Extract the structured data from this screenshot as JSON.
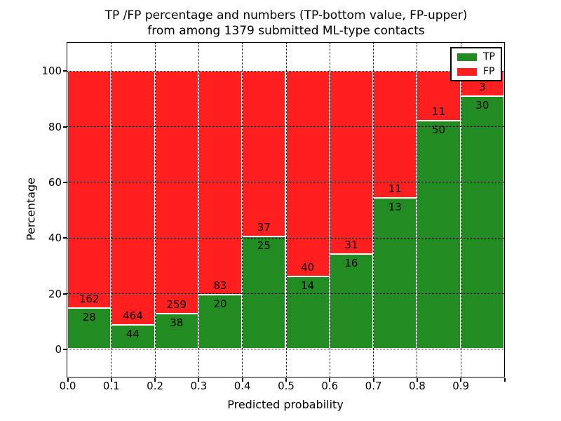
{
  "chart_data": {
    "type": "bar",
    "stacked": true,
    "normalized_to_percent": true,
    "title_line1": "TP /FP percentage and numbers (TP-bottom value, FP-upper)",
    "title_line2": "from among 1379 submitted ML-type contacts",
    "xlabel": "Predicted probability",
    "ylabel": "Percentage",
    "xlim": [
      0.0,
      1.0
    ],
    "ylim": [
      -10,
      110
    ],
    "x_tick_labels": [
      "0.0",
      "0.1",
      "0.2",
      "0.3",
      "0.4",
      "0.5",
      "0.6",
      "0.7",
      "0.8",
      "0.9"
    ],
    "y_tick_values": [
      0,
      20,
      40,
      60,
      80,
      100
    ],
    "y_tick_labels": [
      "0",
      "20",
      "40",
      "60",
      "80",
      "100"
    ],
    "bin_edges": [
      0.0,
      0.1,
      0.2,
      0.3,
      0.4,
      0.5,
      0.6,
      0.7,
      0.8,
      0.9,
      1.0
    ],
    "series": [
      {
        "name": "TP",
        "color": "#228b22",
        "counts": [
          28,
          44,
          38,
          20,
          25,
          14,
          16,
          13,
          50,
          30
        ]
      },
      {
        "name": "FP",
        "color": "#ff1f1f",
        "counts": [
          162,
          464,
          259,
          83,
          37,
          40,
          31,
          11,
          11,
          3
        ]
      }
    ],
    "tp_percentages": [
      14.7,
      8.7,
      12.8,
      19.4,
      40.3,
      25.9,
      34.0,
      54.2,
      82.0,
      90.9
    ],
    "total_contacts": 1379,
    "legend_position": "upper right",
    "grid_style": "dotted",
    "bar_edge_color": "#ffffff",
    "text_color": "#000000"
  }
}
